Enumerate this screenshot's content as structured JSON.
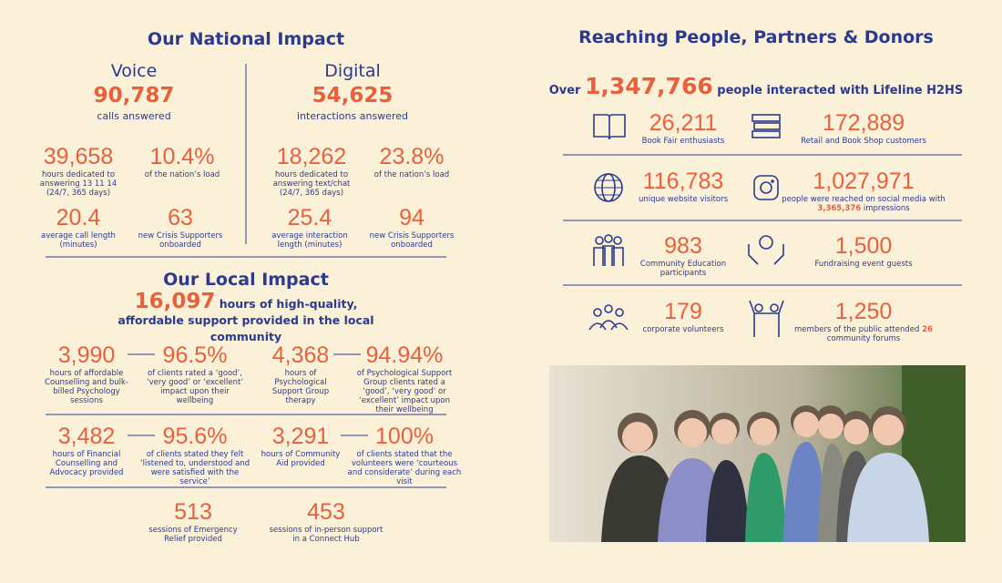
{
  "national": {
    "title": "Our National Impact",
    "voice": {
      "heading": "Voice",
      "total": "90,787",
      "caption": "calls answered",
      "stats": [
        {
          "value": "39,658",
          "label": "hours dedicated to answering 13 11 14 (24/7, 365 days)"
        },
        {
          "value": "10.4%",
          "label": "of the nation’s load"
        },
        {
          "value": "20.4",
          "label": "average call length (minutes)"
        },
        {
          "value": "63",
          "label": "new Crisis Supporters onboarded"
        }
      ]
    },
    "digital": {
      "heading": "Digital",
      "total": "54,625",
      "caption": "interactions answered",
      "stats": [
        {
          "value": "18,262",
          "label": "hours dedicated to answering text/chat (24/7, 365 days)"
        },
        {
          "value": "23.8%",
          "label": "of the nation’s load"
        },
        {
          "value": "25.4",
          "label": "average interaction length (minutes)"
        },
        {
          "value": "94",
          "label": "new Crisis Supporters onboarded"
        }
      ]
    }
  },
  "local": {
    "title": "Our Local Impact",
    "headline": {
      "value": "16,097",
      "text": "hours of high-quality, affordable support provided in the local community"
    },
    "stats": [
      {
        "value": "3,990",
        "label": "hours of affordable Counselling and bulk-billed Psychology sessions"
      },
      {
        "value": "96.5%",
        "label": "of clients rated a ‘good’, ‘very good’ or ‘excellent’ impact upon their wellbeing"
      },
      {
        "value": "4,368",
        "label": "hours of Psychological Support Group therapy"
      },
      {
        "value": "94.94%",
        "label": "of Psychological Support Group clients rated a ‘good’, ‘very good’ or ‘excellent’ impact upon their wellbeing"
      },
      {
        "value": "3,482",
        "label": "hours of Financial Counselling and Advocacy provided"
      },
      {
        "value": "95.6%",
        "label": "of clients stated they felt ‘listened to, understood and were satisfied with the service’"
      },
      {
        "value": "3,291",
        "label": "hours of Community Aid provided"
      },
      {
        "value": "100%",
        "label": "of clients stated that the volunteers were ‘courteous and considerate’ during each visit"
      },
      {
        "value": "513",
        "label": "sessions of Emergency Relief provided"
      },
      {
        "value": "453",
        "label": "sessions of in-person support in a Connect Hub"
      }
    ]
  },
  "reach": {
    "title": "Reaching People, Partners & Donors",
    "summary": {
      "before": "Over",
      "value": "1,347,766",
      "after": "people interacted with Lifeline H2HS"
    },
    "stats": [
      {
        "value": "26,211",
        "label": "Book Fair enthusiasts"
      },
      {
        "value": "172,889",
        "label": "Retail and Book Shop customers"
      },
      {
        "value": "116,783",
        "label": "unique website visitors"
      },
      {
        "value": "1,027,971",
        "label": {
          "before": "people were reached on social media with",
          "highlight": "3,365,376",
          "after": "impressions"
        }
      },
      {
        "value": "983",
        "label": "Community Education participants"
      },
      {
        "value": "1,500",
        "label": "Fundraising event guests"
      },
      {
        "value": "179",
        "label": "corporate volunteers"
      },
      {
        "value": "1,250",
        "label": {
          "before": "members of the public attended",
          "highlight": "26",
          "after": "community forums"
        }
      }
    ]
  }
}
